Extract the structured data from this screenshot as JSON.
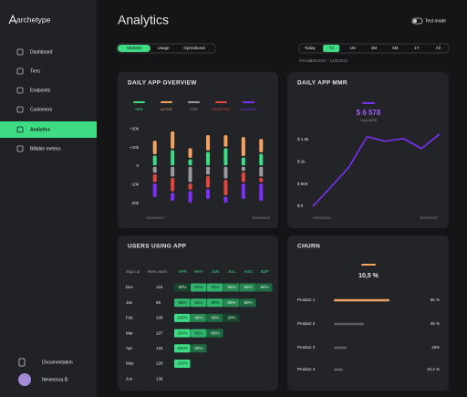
{
  "sidebar": {
    "logo": "archetype",
    "nav": [
      "Dashboard",
      "Tiers",
      "Endpoints",
      "Customers",
      "Analytics",
      "Billable metrics"
    ],
    "footer": [
      "Documentation",
      "Nevenicsa B."
    ]
  },
  "header": {
    "title": "Analytics",
    "test_mode": "Test mode",
    "tabs": [
      "Website",
      "Usage",
      "Operational"
    ],
    "ranges": [
      "Today",
      "7d",
      "1M",
      "3M",
      "6M",
      "1Y",
      "All"
    ],
    "period_label": "Period:",
    "period": "6/5/2022 - 12/5/2022"
  },
  "chart_data": [
    {
      "type": "bar",
      "stacked": true,
      "title": "DAILY APP OVERVIEW",
      "categories": [
        "23/04/2022",
        null,
        null,
        null,
        null,
        null,
        "30/04/2022"
      ],
      "series": [
        {
          "name": "NEW",
          "color": "#3ddc84",
          "values": [
            6000,
            9000,
            4000,
            8000,
            10000,
            5000,
            7000
          ]
        },
        {
          "name": "ACTIVE",
          "color": "#f4a261",
          "values": [
            8000,
            10000,
            6000,
            9000,
            7000,
            11000,
            8000
          ]
        },
        {
          "name": "LOST",
          "color": "#9a9a9e",
          "values": [
            -4000,
            -6000,
            -9000,
            -5000,
            -7000,
            -3000,
            -6000
          ]
        },
        {
          "name": "CHURN OUT",
          "color": "#e0463c",
          "values": [
            -5000,
            -8000,
            -4000,
            -7000,
            -9000,
            -6000,
            -3000
          ]
        },
        {
          "name": "CHURN IN",
          "color": "#7b2ff7",
          "values": [
            -8000,
            -5000,
            -7000,
            -6000,
            -4000,
            -9000,
            -10000
          ]
        }
      ],
      "ylim": [
        -25000,
        25000
      ],
      "yticks": [
        {
          "value": 20000,
          "label": "+20k"
        },
        {
          "value": 10000,
          "label": "+10k"
        },
        0,
        {
          "value": -10000,
          "label": "-10k"
        },
        {
          "value": -20000,
          "label": "-20k"
        }
      ]
    },
    {
      "type": "line",
      "title": "DAILY APP MMR",
      "total": 6578,
      "total_label": "$ 6 578",
      "total_caption": "Total MMR",
      "categories": [
        "23/04/2022",
        null,
        null,
        null,
        null,
        null,
        null,
        "30/04/2022"
      ],
      "series": [
        {
          "color": "#7b2ff7",
          "values": [
            0,
            431,
            883,
            1562,
            1459,
            1521,
            1295,
            1623
          ]
        }
      ],
      "ylim": [
        0,
        1700
      ],
      "yticks": [
        {
          "value": 1500,
          "label": "$ 1.5k"
        },
        {
          "value": 1000,
          "label": "$ 1k"
        },
        {
          "value": 500,
          "label": "$ 500"
        },
        {
          "value": 0,
          "label": "$ 0"
        }
      ]
    },
    {
      "type": "hbar",
      "title": "CHURN",
      "total": 10.5,
      "total_label": "10,5 %",
      "categories": [
        "Product 1",
        "Product 2",
        "Product 3",
        "Product 4"
      ],
      "values": [
        65,
        35,
        15,
        10.4
      ],
      "value_labels": [
        "65 %",
        "35 %",
        "15%",
        "10,4 %"
      ],
      "colors": [
        "#f4a261",
        "#5c5c62",
        "#5c5c62",
        "#5c5c62"
      ],
      "xlim": [
        0,
        100
      ]
    }
  ],
  "users_table": {
    "title": "USERS USING APP",
    "columns": [
      "Sign up",
      "New users",
      "APR",
      "MAY",
      "JUN",
      "JUL",
      "AUG",
      "SEP"
    ],
    "rows": [
      [
        "Dec",
        "118",
        "50%",
        "92%",
        "90%",
        "86%",
        "86%",
        "80%"
      ],
      [
        "Jan",
        "89",
        "90%",
        "92%",
        "90%",
        "86%",
        "80%"
      ],
      [
        "Feb",
        "108",
        "100%",
        "86%",
        "80%",
        "20%"
      ],
      [
        "Mar",
        "107",
        "100%",
        "92%",
        "80%"
      ],
      [
        "Apr",
        "134",
        "100%",
        "80%"
      ],
      [
        "May",
        "128",
        "100%"
      ],
      [
        "Jun",
        "136"
      ]
    ]
  }
}
